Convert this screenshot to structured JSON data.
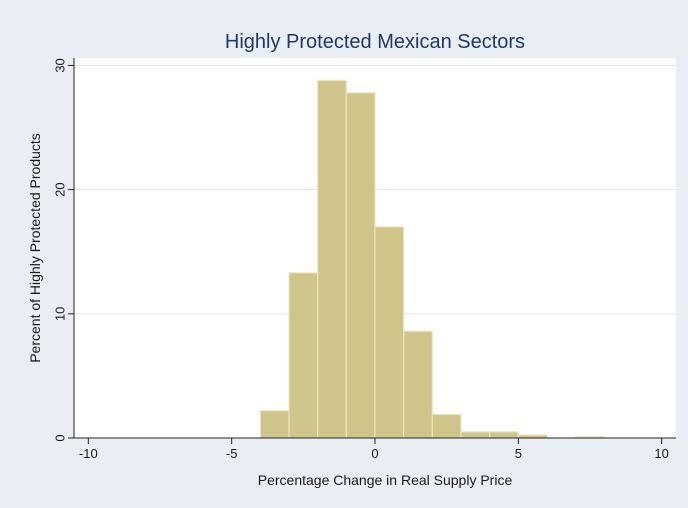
{
  "chart_data": {
    "type": "bar",
    "title": "Highly Protected Mexican Sectors",
    "xlabel": "Percentage Change in Real Supply Price",
    "ylabel": "Percent of Highly Protected Products",
    "xlim": [
      -10.5,
      10.5
    ],
    "ylim": [
      0,
      30
    ],
    "x_ticks": [
      "-10",
      "-5",
      "0",
      "5",
      "10"
    ],
    "y_ticks": [
      "0",
      "10",
      "20",
      "30"
    ],
    "bin_width": 1,
    "bins": [
      {
        "x0": -4,
        "x1": -3,
        "value": 2.2
      },
      {
        "x0": -3,
        "x1": -2,
        "value": 13.3
      },
      {
        "x0": -2,
        "x1": -1,
        "value": 28.8
      },
      {
        "x0": -1,
        "x1": 0,
        "value": 27.8
      },
      {
        "x0": 0,
        "x1": 1,
        "value": 17.0
      },
      {
        "x0": 1,
        "x1": 2,
        "value": 8.6
      },
      {
        "x0": 2,
        "x1": 3,
        "value": 1.9
      },
      {
        "x0": 3,
        "x1": 4,
        "value": 0.5
      },
      {
        "x0": 4,
        "x1": 5,
        "value": 0.5
      },
      {
        "x0": 5,
        "x1": 6,
        "value": 0.25
      },
      {
        "x0": 7,
        "x1": 8,
        "value": 0.1
      }
    ],
    "grid": true,
    "colors": {
      "outer_background": "#e9eef5",
      "plot_background": "#ffffff",
      "bar_fill": "#cfc58a",
      "bar_stroke": "#ebe6c4",
      "grid": "#dfe6f0",
      "axis": "#222222",
      "title": "#1f3864"
    }
  }
}
